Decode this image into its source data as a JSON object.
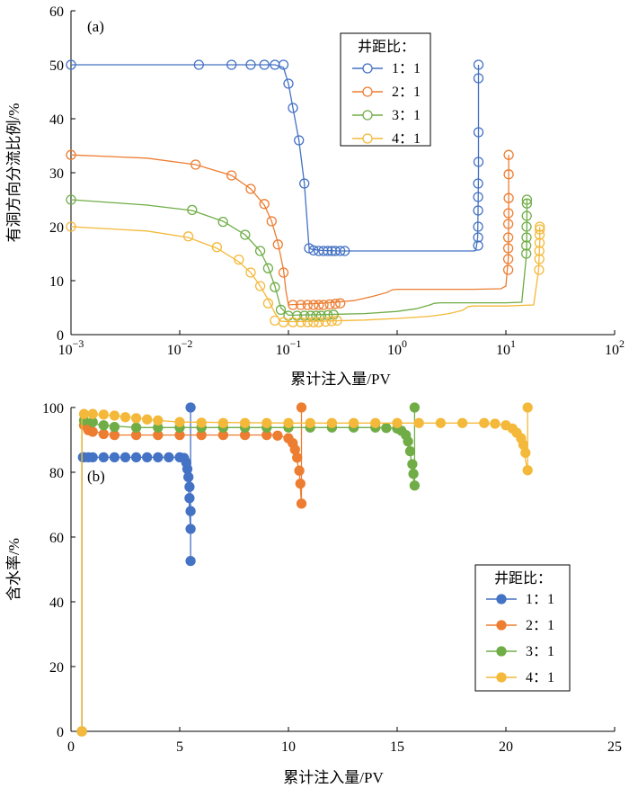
{
  "chart_data": [
    {
      "type": "line",
      "panel_label": "(a)",
      "xlabel": "累计注入量/PV",
      "ylabel": "有洞方向分流比例/%",
      "x_scale": "log",
      "xlim": [
        0.001,
        100
      ],
      "ylim": [
        0,
        60
      ],
      "x_ticks": [
        0.001,
        0.01,
        0.1,
        1,
        10,
        100
      ],
      "x_tick_labels": [
        {
          "base": "10",
          "exp": "−3"
        },
        {
          "base": "10",
          "exp": "−2"
        },
        {
          "base": "10",
          "exp": "−1"
        },
        {
          "base": "10",
          "exp": "0"
        },
        {
          "base": "10",
          "exp": "1"
        },
        {
          "base": "10",
          "exp": "2"
        }
      ],
      "y_ticks": [
        0,
        10,
        20,
        30,
        40,
        50,
        60
      ],
      "y_tick_labels": [
        "0",
        "10",
        "20",
        "30",
        "40",
        "50",
        "60"
      ],
      "grid": false,
      "marker": "open-circle",
      "legend": {
        "title": "井距比：",
        "placement": "top-right",
        "entries": [
          "1：1",
          "2：1",
          "3：1",
          "4：1"
        ]
      },
      "series": [
        {
          "name": "1：1",
          "color": "#4472C4",
          "x": [
            0.001,
            0.015,
            0.03,
            0.045,
            0.06,
            0.075,
            0.09,
            0.1,
            0.11,
            0.125,
            0.14,
            0.155,
            0.165,
            0.2,
            0.3,
            0.5,
            1,
            2,
            3,
            4,
            5,
            5.3,
            5.5,
            5.55,
            5.6,
            5.6,
            5.6,
            5.6,
            5.6
          ],
          "y": [
            50,
            50,
            50,
            50,
            50,
            50,
            49.5,
            46.5,
            42,
            36,
            28,
            16,
            15.8,
            15.6,
            15.5,
            15.5,
            15.5,
            15.5,
            15.5,
            15.5,
            15.5,
            15.6,
            18,
            24,
            30,
            37.5,
            43,
            47.5,
            50
          ],
          "markers_x": [
            0.001,
            0.015,
            0.03,
            0.045,
            0.06,
            0.075,
            0.09,
            0.1,
            0.11,
            0.125,
            0.14,
            0.155,
            0.17,
            0.19,
            0.21,
            0.23,
            0.25,
            0.27,
            0.3,
            0.33,
            5.55,
            5.55,
            5.55,
            5.55,
            5.55,
            5.55,
            5.6,
            5.6,
            5.6,
            5.6
          ],
          "markers_y": [
            50,
            50,
            50,
            50,
            50,
            50,
            50,
            46.5,
            42,
            36,
            28,
            16,
            15.6,
            15.5,
            15.5,
            15.5,
            15.5,
            15.5,
            15.5,
            15.5,
            16.5,
            18,
            20,
            23,
            25.5,
            28,
            32,
            37.5,
            47.5,
            50
          ]
        },
        {
          "name": "2：1",
          "color": "#ED7D31",
          "x": [
            0.001,
            0.005,
            0.014,
            0.03,
            0.045,
            0.06,
            0.07,
            0.08,
            0.09,
            0.095,
            0.1,
            0.12,
            0.2,
            0.4,
            0.6,
            0.8,
            0.9,
            1,
            2,
            5,
            9,
            10,
            10.5,
            10.6,
            10.6,
            10.6
          ],
          "y": [
            33.3,
            32.7,
            31.5,
            29.5,
            27,
            24,
            21,
            17,
            12,
            8,
            5.5,
            5.6,
            5.8,
            6.3,
            7.1,
            7.8,
            8.3,
            8.4,
            8.4,
            8.4,
            8.5,
            9,
            14,
            22,
            30,
            33.3
          ],
          "markers_x": [
            0.001,
            0.014,
            0.03,
            0.045,
            0.06,
            0.07,
            0.08,
            0.09,
            0.11,
            0.13,
            0.15,
            0.17,
            0.19,
            0.21,
            0.24,
            0.27,
            0.3,
            10.5,
            10.5,
            10.5,
            10.5,
            10.5,
            10.55,
            10.6,
            10.6,
            10.6
          ],
          "markers_y": [
            33.3,
            31.5,
            29.5,
            27,
            24.2,
            21,
            16.7,
            11.5,
            5.5,
            5.5,
            5.5,
            5.5,
            5.5,
            5.5,
            5.6,
            5.7,
            5.8,
            12,
            14,
            16,
            18,
            20.5,
            22.5,
            25.3,
            29.7,
            33.3
          ]
        },
        {
          "name": "3：1",
          "color": "#70AD47",
          "x": [
            0.001,
            0.005,
            0.013,
            0.025,
            0.04,
            0.055,
            0.065,
            0.075,
            0.085,
            0.1,
            0.2,
            0.5,
            1,
            1.5,
            2,
            2.2,
            2.5,
            5,
            10,
            14,
            15.5,
            15.6,
            15.6
          ],
          "y": [
            25,
            24,
            23,
            21,
            18.5,
            15.5,
            12.5,
            9,
            5,
            3.6,
            3.7,
            3.9,
            4.3,
            4.8,
            5.5,
            5.8,
            5.9,
            5.9,
            5.9,
            6,
            15,
            22,
            25
          ],
          "markers_x": [
            0.001,
            0.013,
            0.025,
            0.04,
            0.055,
            0.065,
            0.075,
            0.085,
            0.1,
            0.12,
            0.14,
            0.16,
            0.18,
            0.2,
            0.23,
            0.26,
            15.4,
            15.4,
            15.5,
            15.5,
            15.55,
            15.6,
            15.6
          ],
          "markers_y": [
            25,
            23.1,
            20.9,
            18.5,
            15.5,
            12.3,
            8.8,
            4.6,
            3.5,
            3.5,
            3.5,
            3.5,
            3.5,
            3.5,
            3.6,
            3.7,
            15,
            16.5,
            18,
            20,
            22,
            24.3,
            25
          ]
        },
        {
          "name": "4：1",
          "color": "#F4B93A",
          "x": [
            0.001,
            0.005,
            0.012,
            0.022,
            0.035,
            0.045,
            0.055,
            0.065,
            0.075,
            0.085,
            0.1,
            0.2,
            0.5,
            1,
            2,
            3,
            4,
            4.5,
            5,
            10,
            18,
            20,
            20.5,
            20.5
          ],
          "y": [
            20,
            19.2,
            18,
            16,
            13.5,
            11.5,
            9,
            6.5,
            4,
            2.5,
            2.4,
            2.5,
            2.7,
            3,
            3.4,
            3.9,
            4.5,
            5.2,
            5.3,
            5.3,
            5.5,
            12,
            17,
            20
          ],
          "markers_x": [
            0.001,
            0.012,
            0.022,
            0.035,
            0.045,
            0.055,
            0.065,
            0.075,
            0.09,
            0.11,
            0.13,
            0.15,
            0.17,
            0.19,
            0.22,
            0.25,
            0.28,
            20.2,
            20.3,
            20.3,
            20.4,
            20.4,
            20.5,
            20.5
          ],
          "markers_y": [
            20,
            18.2,
            16.2,
            13.9,
            11.5,
            9,
            5.8,
            2.6,
            2.3,
            2.3,
            2.3,
            2.3,
            2.3,
            2.3,
            2.4,
            2.5,
            2.6,
            12,
            14,
            15.5,
            17,
            18.5,
            19.5,
            20
          ]
        }
      ]
    },
    {
      "type": "line",
      "panel_label": "(b)",
      "xlabel": "累计注入量/PV",
      "ylabel": "含水率/%",
      "x_scale": "linear",
      "xlim": [
        0,
        25
      ],
      "ylim": [
        0,
        100
      ],
      "x_ticks": [
        0,
        5,
        10,
        15,
        20,
        25
      ],
      "x_tick_labels": [
        "0",
        "5",
        "10",
        "15",
        "20",
        "25"
      ],
      "y_ticks": [
        0,
        20,
        40,
        60,
        80,
        100
      ],
      "y_tick_labels": [
        "0",
        "20",
        "40",
        "60",
        "80",
        "100"
      ],
      "grid": false,
      "marker": "filled-circle",
      "legend": {
        "title": "井距比：",
        "placement": "center-right",
        "entries": [
          "1：1",
          "2：1",
          "3：1",
          "4：1"
        ]
      },
      "series": [
        {
          "name": "1：1",
          "color": "#4472C4",
          "x": [
            0.5,
            0.5,
            0.6,
            1,
            2,
            3,
            4,
            5,
            5.2,
            5.3,
            5.4,
            5.45,
            5.5,
            5.5,
            5.5,
            5.5
          ],
          "y": [
            0,
            84.6,
            84.6,
            84.6,
            84.6,
            84.6,
            84.6,
            84.6,
            84,
            82,
            76,
            68,
            62,
            52.5,
            84.6,
            100
          ],
          "markers_x": [
            0.5,
            0.55,
            0.6,
            0.8,
            1,
            1.5,
            2,
            2.5,
            3,
            3.5,
            4,
            4.5,
            5,
            5.2,
            5.3,
            5.35,
            5.4,
            5.45,
            5.45,
            5.5,
            5.5,
            5.5,
            5.5
          ],
          "markers_y": [
            0,
            84.6,
            84.6,
            84.6,
            84.6,
            84.6,
            84.6,
            84.6,
            84.6,
            84.6,
            84.6,
            84.6,
            84.6,
            84.4,
            83,
            81,
            78.5,
            75.5,
            72,
            68,
            62.5,
            52.6,
            100
          ]
        },
        {
          "name": "2：1",
          "color": "#ED7D31",
          "x": [
            0.5,
            0.5,
            0.6,
            2,
            5,
            8,
            9.5,
            10,
            10.3,
            10.5,
            10.6,
            10.6,
            10.6
          ],
          "y": [
            0,
            94.5,
            93,
            91.5,
            91.5,
            91.5,
            91.5,
            90.5,
            87,
            80,
            70.2,
            91.5,
            100
          ],
          "markers_x": [
            0.5,
            0.6,
            0.8,
            1,
            1.5,
            2,
            3,
            4,
            5,
            6,
            7,
            8,
            9,
            9.5,
            10,
            10.2,
            10.3,
            10.4,
            10.5,
            10.55,
            10.6,
            10.6
          ],
          "markers_y": [
            0,
            94.5,
            93,
            92.5,
            91.8,
            91.5,
            91.5,
            91.5,
            91.5,
            91.5,
            91.5,
            91.5,
            91.5,
            91.3,
            90.5,
            89,
            87,
            84.5,
            80.5,
            76.5,
            70.3,
            100
          ]
        },
        {
          "name": "3：1",
          "color": "#70AD47",
          "x": [
            0.5,
            0.5,
            0.6,
            1.5,
            3,
            6,
            10,
            14,
            15,
            15.4,
            15.6,
            15.8,
            15.8,
            15.8
          ],
          "y": [
            0,
            96,
            95.5,
            94.5,
            93.8,
            93.8,
            93.8,
            93.8,
            93.5,
            91.5,
            86,
            75.8,
            93.8,
            100
          ],
          "markers_x": [
            0.5,
            0.6,
            1,
            1.5,
            2,
            3,
            4,
            5,
            6,
            7,
            8,
            9,
            10,
            11,
            12,
            13,
            14,
            14.5,
            15,
            15.2,
            15.4,
            15.5,
            15.6,
            15.7,
            15.75,
            15.8,
            15.8
          ],
          "markers_y": [
            0,
            96,
            95.5,
            94.5,
            94,
            93.8,
            93.8,
            93.8,
            93.8,
            93.8,
            93.8,
            93.8,
            93.8,
            93.8,
            93.8,
            93.8,
            93.8,
            93.7,
            93.5,
            92.8,
            91.5,
            89.5,
            86.5,
            82.5,
            79.5,
            75.9,
            100
          ]
        },
        {
          "name": "4：1",
          "color": "#F4B93A",
          "x": [
            0.5,
            0.5,
            0.6,
            2,
            4,
            5,
            10,
            15,
            19,
            20,
            20.5,
            20.8,
            21,
            21,
            21
          ],
          "y": [
            0,
            98,
            98,
            97.5,
            96,
            95.5,
            95.2,
            95.2,
            95.2,
            94.5,
            92,
            87,
            80.5,
            95.2,
            100
          ],
          "markers_x": [
            0.5,
            0.6,
            1,
            1.5,
            2,
            2.5,
            3,
            3.5,
            4,
            5,
            6,
            7,
            8,
            9,
            10,
            11,
            12,
            13,
            14,
            15,
            16,
            17,
            18,
            19,
            19.5,
            20,
            20.3,
            20.5,
            20.7,
            20.8,
            20.9,
            21,
            21
          ],
          "markers_y": [
            0,
            98,
            98,
            97.8,
            97.5,
            97,
            96.7,
            96.3,
            96,
            95.5,
            95.3,
            95.2,
            95.2,
            95.2,
            95.2,
            95.2,
            95.2,
            95.2,
            95.2,
            95.2,
            95.2,
            95.2,
            95.2,
            95.2,
            95,
            94.5,
            93.5,
            92.2,
            90.5,
            88.5,
            86,
            80.6,
            100
          ]
        }
      ]
    }
  ]
}
